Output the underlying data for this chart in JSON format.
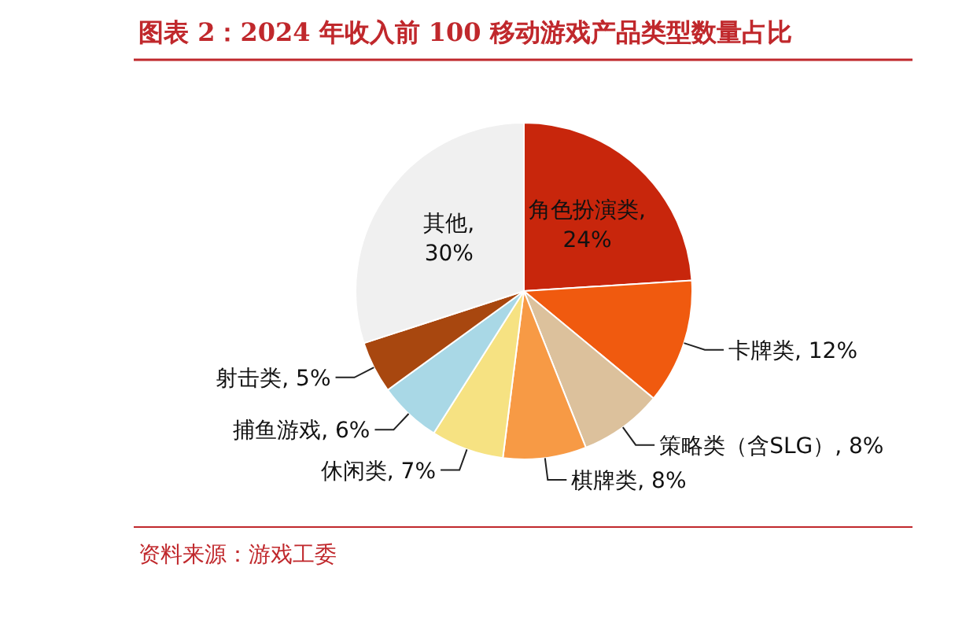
{
  "chart_data": {
    "type": "pie",
    "title": "图表 2：2024 年收入前 100 移动游戏产品类型数量占比",
    "categories": [
      "角色扮演类",
      "卡牌类",
      "策略类（含SLG）",
      "棋牌类",
      "休闲类",
      "捕鱼游戏",
      "射击类",
      "其他"
    ],
    "values": [
      24,
      12,
      8,
      8,
      7,
      6,
      5,
      30
    ],
    "value_labels": [
      ", 24%",
      ", 12%",
      ", 8%",
      ", 8%",
      ", 7%",
      ", 6%",
      ", 5%",
      ", 30%"
    ],
    "colors": [
      "#c8260c",
      "#f05a0f",
      "#dcc19c",
      "#f79a45",
      "#f6e282",
      "#a9d8e6",
      "#a8470f",
      "#f0f0f0"
    ],
    "annotations": [
      "资料来源：游戏工委"
    ]
  }
}
